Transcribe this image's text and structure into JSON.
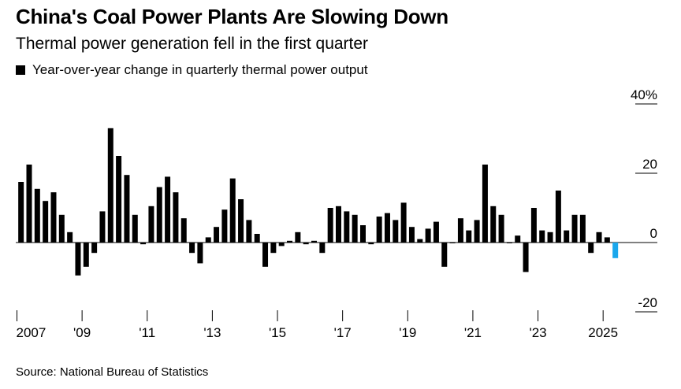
{
  "title": "China's Coal Power Plants Are Slowing Down",
  "subtitle": "Thermal power generation fell in the first quarter",
  "legend_label": "Year-over-year change in quarterly thermal power output",
  "source": "Source: National Bureau of Statistics",
  "colors": {
    "bar": "#000000",
    "highlight": "#1aa7ec",
    "axis": "#000000"
  },
  "chart_data": {
    "type": "bar",
    "title": "China's Coal Power Plants Are Slowing Down",
    "subtitle": "Thermal power generation fell in the first quarter",
    "legend": [
      "Year-over-year change in quarterly thermal power output"
    ],
    "x_start_quarter": "2007 Q1",
    "x_ticks": [
      {
        "year": 2007,
        "label": "2007"
      },
      {
        "year": 2009,
        "label": "'09"
      },
      {
        "year": 2011,
        "label": "'11"
      },
      {
        "year": 2013,
        "label": "'13"
      },
      {
        "year": 2015,
        "label": "'15"
      },
      {
        "year": 2017,
        "label": "'17"
      },
      {
        "year": 2019,
        "label": "'19"
      },
      {
        "year": 2021,
        "label": "'21"
      },
      {
        "year": 2023,
        "label": "'23"
      },
      {
        "year": 2025,
        "label": "2025"
      }
    ],
    "y_ticks": [
      {
        "value": 40,
        "label": "40%"
      },
      {
        "value": 20,
        "label": "20"
      },
      {
        "value": 0,
        "label": "0"
      },
      {
        "value": -20,
        "label": "-20"
      }
    ],
    "ylim": [
      -20,
      40
    ],
    "x_range_years": [
      2007,
      2026
    ],
    "highlight_last": true,
    "values": [
      17.5,
      22.5,
      15.5,
      12,
      14.5,
      8,
      3,
      -9.5,
      -7,
      -3,
      9,
      33,
      25,
      19.5,
      8,
      -0.5,
      10.5,
      16,
      19,
      14.5,
      7,
      -3,
      -6,
      1.5,
      4.5,
      9.5,
      18.5,
      12.5,
      6.5,
      2.5,
      -7,
      -3,
      -1,
      0.5,
      3,
      -0.5,
      0.5,
      -3,
      10,
      10.5,
      9,
      8,
      5,
      -0.5,
      7.5,
      8.5,
      6.5,
      11.5,
      4.5,
      1,
      4,
      6,
      -7,
      0,
      7,
      3.5,
      6.5,
      22.5,
      10.5,
      8,
      0,
      2,
      -8.5,
      10,
      3.5,
      3,
      15,
      3.5,
      8,
      8,
      -3,
      3,
      1.5,
      -4.5
    ]
  }
}
